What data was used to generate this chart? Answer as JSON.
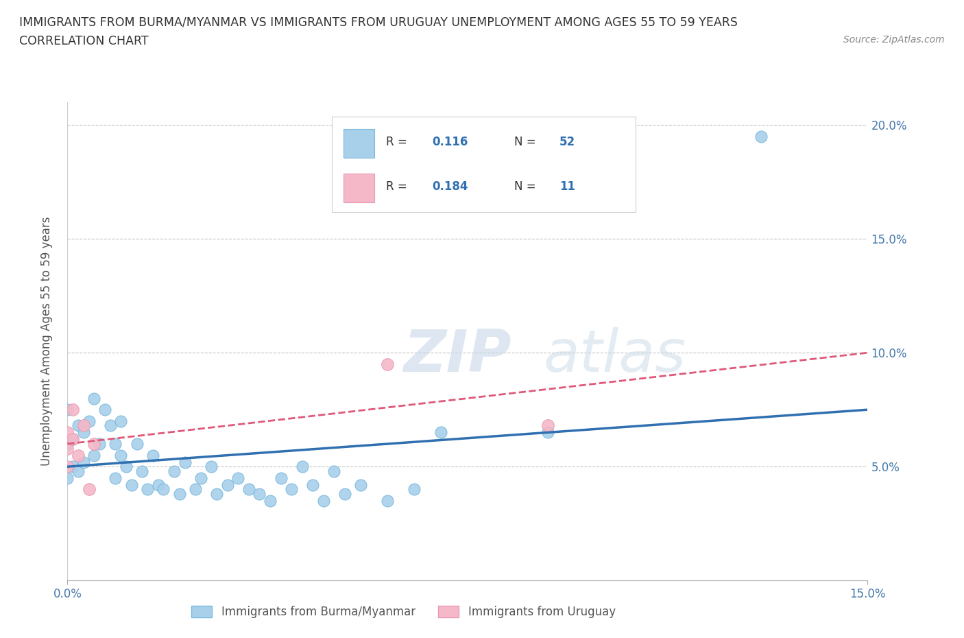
{
  "title_line1": "IMMIGRANTS FROM BURMA/MYANMAR VS IMMIGRANTS FROM URUGUAY UNEMPLOYMENT AMONG AGES 55 TO 59 YEARS",
  "title_line2": "CORRELATION CHART",
  "source_text": "Source: ZipAtlas.com",
  "ylabel": "Unemployment Among Ages 55 to 59 years",
  "xlim": [
    0.0,
    0.15
  ],
  "ylim": [
    0.0,
    0.21
  ],
  "xtick_vals": [
    0.0,
    0.15
  ],
  "xtick_labels": [
    "0.0%",
    "15.0%"
  ],
  "ytick_vals": [
    0.05,
    0.1,
    0.15,
    0.2
  ],
  "ytick_labels": [
    "5.0%",
    "10.0%",
    "15.0%",
    "20.0%"
  ],
  "watermark_zip": "ZIP",
  "watermark_atlas": "atlas",
  "legend_text": [
    [
      "R = ",
      "0.116",
      "  N = ",
      "52"
    ],
    [
      "R = ",
      "0.184",
      "  N = ",
      "11"
    ]
  ],
  "color_burma": "#a8d0ea",
  "color_burma_edge": "#7ab8dd",
  "color_uruguay": "#f5b8c8",
  "color_uruguay_edge": "#e899b0",
  "trendline_burma_color": "#3070b0",
  "trendline_uruguay_color": "#e05878",
  "legend_color_val": "#3070b0",
  "burma_x": [
    0.0,
    0.0,
    0.0,
    0.001,
    0.001,
    0.002,
    0.002,
    0.003,
    0.003,
    0.004,
    0.005,
    0.005,
    0.006,
    0.007,
    0.008,
    0.009,
    0.009,
    0.01,
    0.01,
    0.011,
    0.012,
    0.013,
    0.014,
    0.015,
    0.016,
    0.017,
    0.018,
    0.02,
    0.021,
    0.022,
    0.024,
    0.025,
    0.027,
    0.028,
    0.03,
    0.032,
    0.034,
    0.036,
    0.038,
    0.04,
    0.042,
    0.044,
    0.046,
    0.048,
    0.05,
    0.052,
    0.055,
    0.06,
    0.065,
    0.07,
    0.09,
    0.13
  ],
  "burma_y": [
    0.045,
    0.06,
    0.075,
    0.05,
    0.062,
    0.048,
    0.068,
    0.052,
    0.065,
    0.07,
    0.055,
    0.08,
    0.06,
    0.075,
    0.068,
    0.045,
    0.06,
    0.055,
    0.07,
    0.05,
    0.042,
    0.06,
    0.048,
    0.04,
    0.055,
    0.042,
    0.04,
    0.048,
    0.038,
    0.052,
    0.04,
    0.045,
    0.05,
    0.038,
    0.042,
    0.045,
    0.04,
    0.038,
    0.035,
    0.045,
    0.04,
    0.05,
    0.042,
    0.035,
    0.048,
    0.038,
    0.042,
    0.035,
    0.04,
    0.065,
    0.065,
    0.195
  ],
  "uruguay_x": [
    0.0,
    0.0,
    0.0,
    0.001,
    0.001,
    0.002,
    0.003,
    0.004,
    0.005,
    0.06,
    0.09
  ],
  "uruguay_y": [
    0.065,
    0.058,
    0.05,
    0.075,
    0.062,
    0.055,
    0.068,
    0.04,
    0.06,
    0.095,
    0.068
  ],
  "burma_trend_x": [
    0.0,
    0.15
  ],
  "burma_trend_y": [
    0.05,
    0.075
  ],
  "uruguay_trend_x": [
    0.0,
    0.15
  ],
  "uruguay_trend_y": [
    0.06,
    0.1
  ],
  "legend_bottom_labels": [
    "Immigrants from Burma/Myanmar",
    "Immigrants from Uruguay"
  ]
}
